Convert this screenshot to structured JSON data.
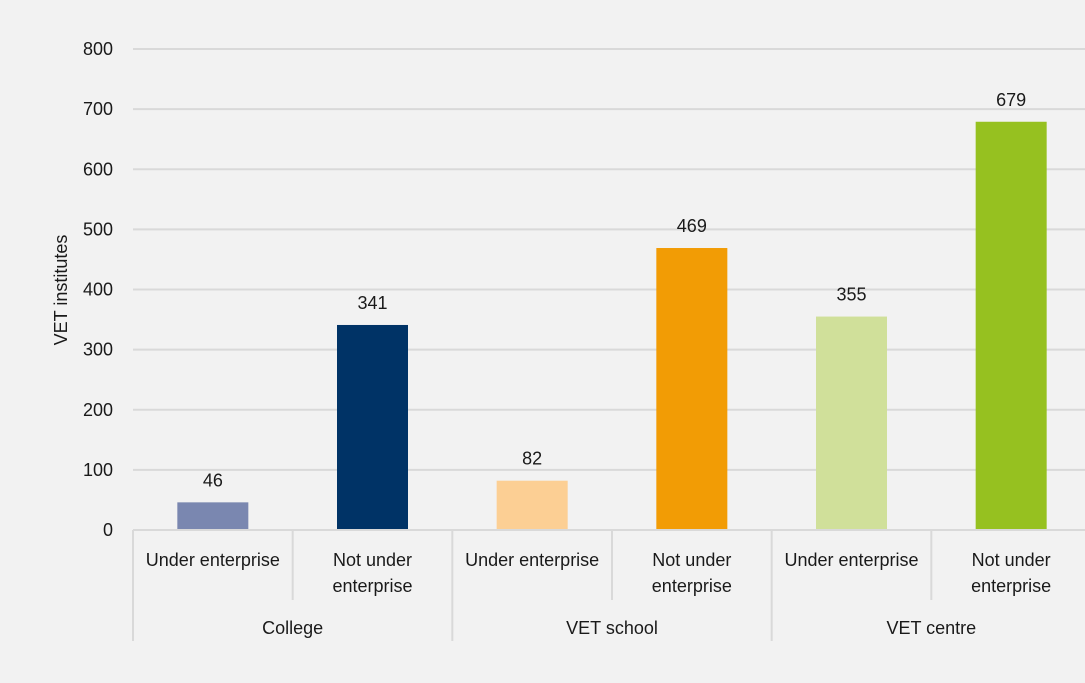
{
  "chart_data": {
    "type": "bar",
    "title": "",
    "xlabel": "",
    "ylabel": "VET institutes",
    "ylim": [
      0,
      800
    ],
    "yticks": [
      0,
      100,
      200,
      300,
      400,
      500,
      600,
      700,
      800
    ],
    "grid": true,
    "legend": "none",
    "groups": [
      {
        "name": "College",
        "bars": [
          {
            "label": "Under enterprise",
            "value": 46,
            "color": "#7a87b0"
          },
          {
            "label": "Not under enterprise",
            "value": 341,
            "color": "#003366"
          }
        ]
      },
      {
        "name": "VET school",
        "bars": [
          {
            "label": "Under enterprise",
            "value": 82,
            "color": "#fccf94"
          },
          {
            "label": "Not under enterprise",
            "value": 469,
            "color": "#f29c05"
          }
        ]
      },
      {
        "name": "VET centre",
        "bars": [
          {
            "label": "Under enterprise",
            "value": 355,
            "color": "#d0e09a"
          },
          {
            "label": "Not under enterprise",
            "value": 679,
            "color": "#96c120"
          }
        ]
      }
    ]
  }
}
